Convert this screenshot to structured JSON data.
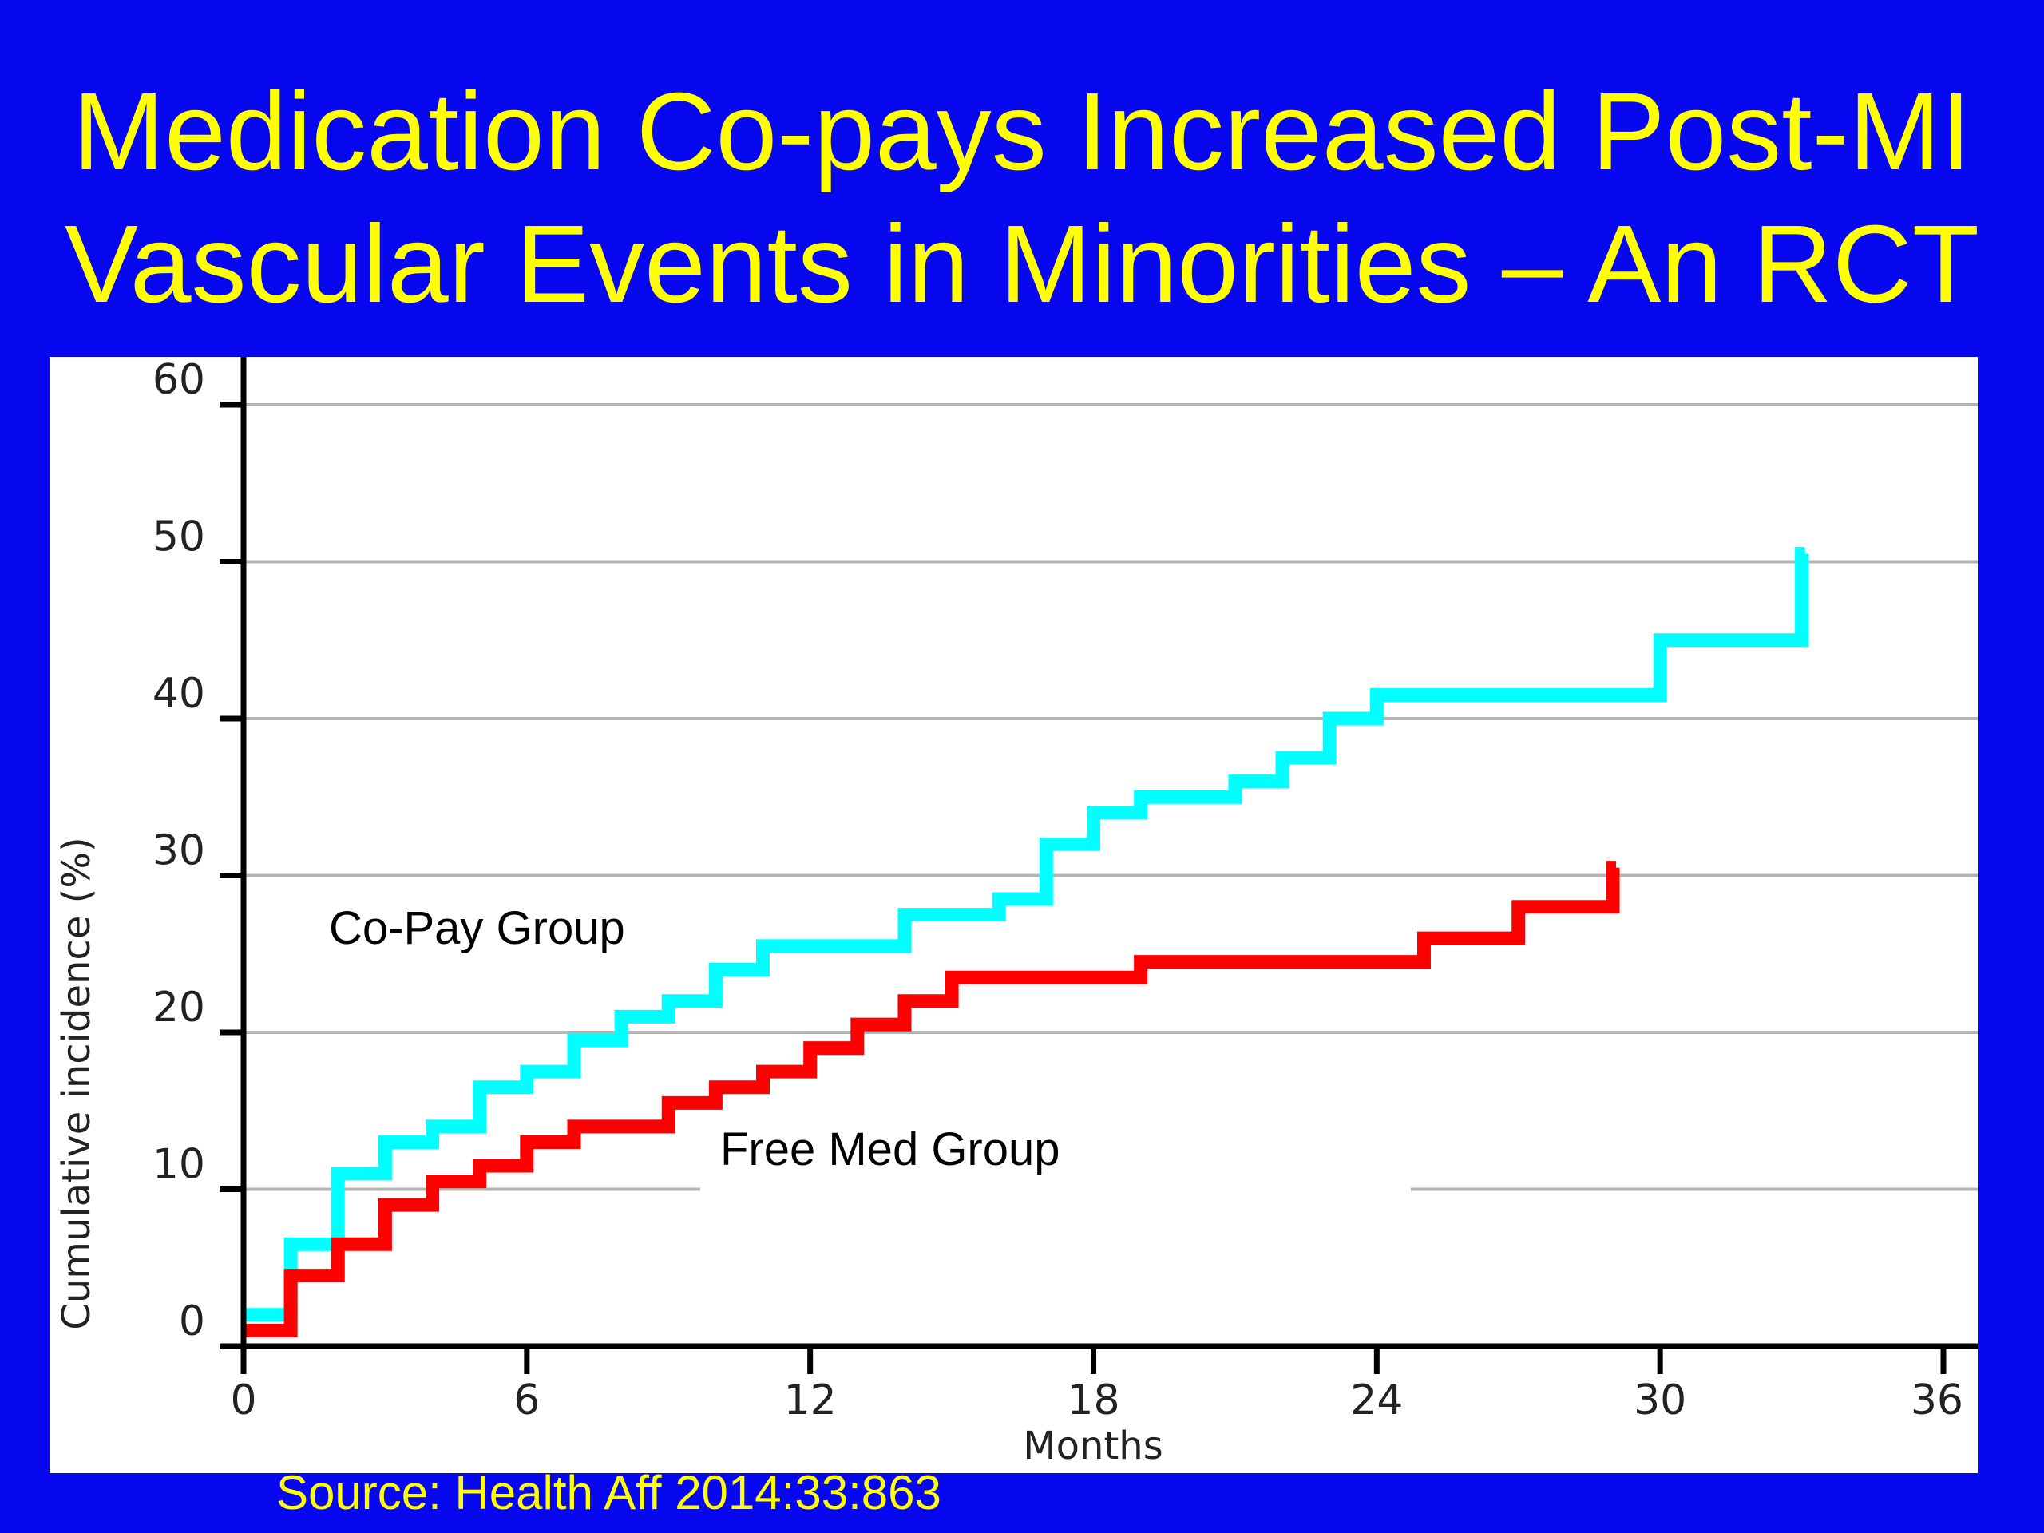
{
  "slide": {
    "title_line1": "Medication Co-pays Increased Post-MI",
    "title_line2": "Vascular Events in Minorities – An RCT",
    "source": "Source: Health Aff 2014:33:863",
    "background": "#0808f0",
    "title_color": "#ffff00"
  },
  "chart_data": {
    "type": "line",
    "step": true,
    "xlabel": "Months",
    "ylabel": "Cumulative incidence (%)",
    "xlim": [
      0,
      36
    ],
    "ylim": [
      0,
      60
    ],
    "xticks": [
      0,
      6,
      12,
      18,
      24,
      30,
      36
    ],
    "yticks": [
      0,
      10,
      20,
      30,
      40,
      50,
      60
    ],
    "grid": true,
    "annotations": [
      "Co-Pay Group",
      "Free Med Group"
    ],
    "series": [
      {
        "name": "Co-Pay Group",
        "color": "#00ffff",
        "x": [
          0,
          1,
          2,
          3,
          4,
          5,
          6,
          7,
          8,
          9,
          10,
          11,
          14,
          16,
          17,
          18,
          19,
          21,
          22,
          23,
          24,
          30,
          33
        ],
        "y": [
          2,
          6.5,
          11,
          13,
          14,
          16.5,
          17.5,
          19.5,
          21,
          22,
          24,
          25.5,
          27.5,
          28.5,
          32,
          34,
          35,
          36,
          37.5,
          40,
          41.5,
          45,
          50.5
        ]
      },
      {
        "name": "Free Med Group",
        "color": "#ff0000",
        "x": [
          0,
          1,
          2,
          3,
          4,
          5,
          6,
          7,
          9,
          10,
          11,
          12,
          13,
          14,
          15,
          19,
          25,
          27,
          29
        ],
        "y": [
          1,
          4.5,
          6.5,
          9,
          10.5,
          11.5,
          13,
          14,
          15.5,
          16.5,
          17.5,
          19,
          20.5,
          22,
          23.5,
          24.5,
          26,
          28,
          30.5
        ]
      }
    ]
  }
}
